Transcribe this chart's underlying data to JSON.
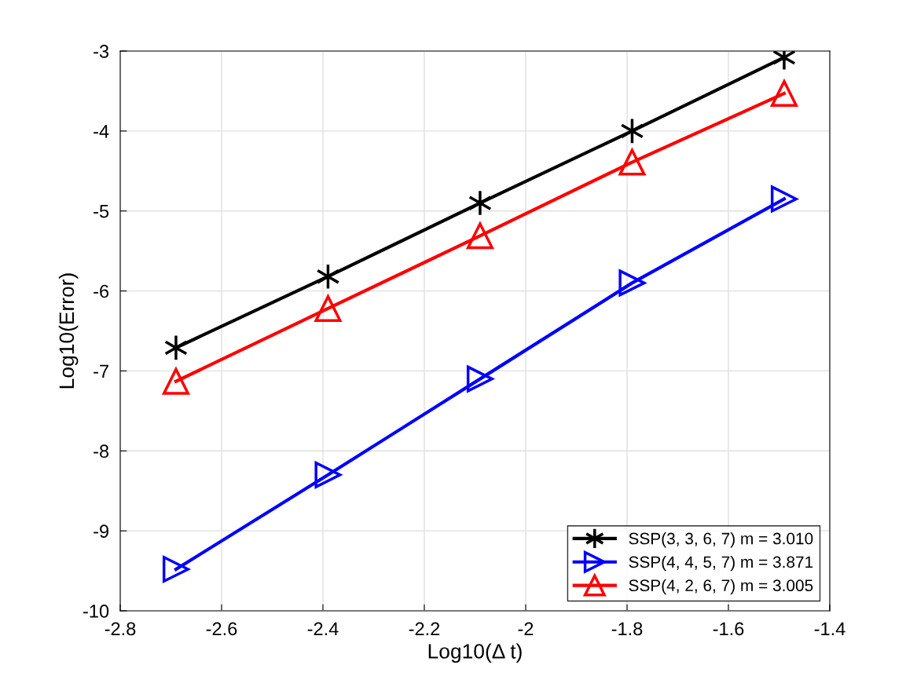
{
  "chart_data": {
    "type": "line",
    "xlabel": "Log10(Δ t)",
    "ylabel": "Log10(Error)",
    "x": [
      -2.69,
      -2.39,
      -2.09,
      -1.79,
      -1.49
    ],
    "series": [
      {
        "name": "SSP(3, 3, 6, 7) m = 3.010",
        "color": "#000000",
        "marker": "cross",
        "values": [
          -6.71,
          -5.82,
          -4.9,
          -4.0,
          -3.08
        ]
      },
      {
        "name": "SSP(4, 4, 5, 7) m = 3.871",
        "color": "#0000ff",
        "marker": "triangle_right",
        "values": [
          -9.48,
          -8.3,
          -7.1,
          -5.9,
          -4.85
        ]
      },
      {
        "name": "SSP(4, 2, 6, 7) m = 3.005",
        "color": "#ff0000",
        "marker": "triangle",
        "values": [
          -7.13,
          -6.22,
          -5.31,
          -4.39,
          -3.53
        ]
      }
    ],
    "xlim": [
      -2.8,
      -1.4
    ],
    "xticks": [
      -2.8,
      -2.6,
      -2.4,
      -2.2,
      -2,
      -1.8,
      -1.6,
      -1.4
    ],
    "ylim": [
      -10,
      -3
    ],
    "yticks": [
      -10,
      -9,
      -8,
      -7,
      -6,
      -5,
      -4,
      -3
    ],
    "grid": true,
    "legend": "bottom right",
    "line_style": "solid"
  }
}
